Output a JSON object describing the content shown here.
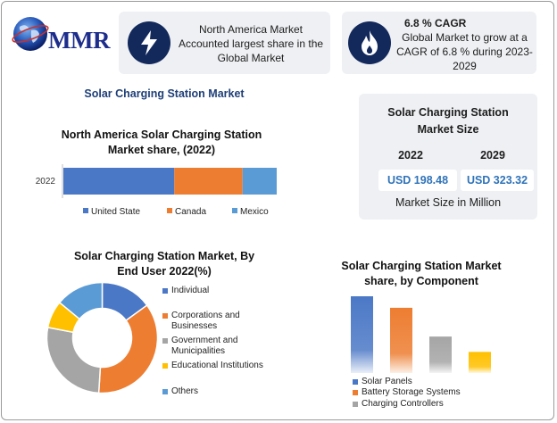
{
  "brand": {
    "name": "MMR"
  },
  "cards": [
    {
      "icon": "lightning-icon",
      "lines": [
        "North America Market",
        "Accounted largest share in the",
        "Global Market"
      ]
    },
    {
      "icon": "flame-icon",
      "title": "6.8 % CAGR",
      "lines": [
        "Global Market to grow at a",
        "CAGR of 6.8 % during 2023-",
        "2029"
      ]
    }
  ],
  "main_title": "Solar Charging Station Market",
  "market_size": {
    "title_lines": [
      "Solar Charging Station",
      "Market Size"
    ],
    "years": [
      "2022",
      "2029"
    ],
    "values": [
      "USD 198.48",
      "USD 323.32"
    ],
    "unit": "Market Size in Million"
  },
  "colors": {
    "blue": "#4b78c6",
    "orange": "#ed7d31",
    "light_blue": "#5b9bd5",
    "grey": "#a5a5a5",
    "yellow": "#ffc000",
    "navy": "#13295c"
  },
  "chart_data": [
    {
      "type": "bar",
      "orientation": "horizontal-stacked",
      "title_lines": [
        "North America Solar Charging Station",
        "Market share, (2022)"
      ],
      "categories": [
        "2022"
      ],
      "series": [
        {
          "name": "United State",
          "values": [
            52
          ],
          "color": "#4b78c6"
        },
        {
          "name": "Canada",
          "values": [
            32
          ],
          "color": "#ed7d31"
        },
        {
          "name": "Mexico",
          "values": [
            16
          ],
          "color": "#5b9bd5"
        }
      ],
      "legend": "bottom"
    },
    {
      "type": "pie",
      "style": "donut",
      "title_lines": [
        "Solar Charging Station Market, By",
        "End User 2022(%)"
      ],
      "slices": [
        {
          "name": "Individual",
          "value": 15,
          "color": "#4b78c6"
        },
        {
          "name": "Corporations and Businesses",
          "label_lines": [
            "Corporations and",
            "Businesses"
          ],
          "value": 36,
          "color": "#ed7d31"
        },
        {
          "name": "Government and Municipalities",
          "label_lines": [
            "Government and",
            "Municipalities"
          ],
          "value": 27,
          "color": "#a5a5a5"
        },
        {
          "name": "Educational Institutions",
          "value": 8,
          "color": "#ffc000"
        },
        {
          "name": "Others",
          "value": 14,
          "color": "#5b9bd5"
        }
      ],
      "legend": "right"
    },
    {
      "type": "bar",
      "title_lines": [
        "Solar Charging Station Market",
        "share, by Component"
      ],
      "categories": [
        "Solar Panels",
        "Battery Storage Systems",
        "Charging Controllers",
        ""
      ],
      "values": [
        40,
        34,
        19,
        11
      ],
      "colors": [
        "#4b78c6",
        "#ed7d31",
        "#a5a5a5",
        "#ffc000"
      ],
      "legend_items": [
        "Solar Panels",
        "Battery Storage Systems",
        "Charging Controllers"
      ],
      "legend": "bottom"
    }
  ]
}
